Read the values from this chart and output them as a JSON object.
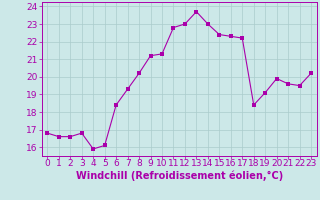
{
  "x": [
    0,
    1,
    2,
    3,
    4,
    5,
    6,
    7,
    8,
    9,
    10,
    11,
    12,
    13,
    14,
    15,
    16,
    17,
    18,
    19,
    20,
    21,
    22,
    23
  ],
  "y": [
    16.8,
    16.6,
    16.6,
    16.8,
    15.9,
    16.1,
    18.4,
    19.3,
    20.2,
    21.2,
    21.3,
    22.8,
    23.0,
    23.7,
    23.0,
    22.4,
    22.3,
    22.2,
    18.4,
    19.1,
    19.9,
    19.6,
    19.5,
    20.2
  ],
  "line_color": "#aa00aa",
  "marker_color": "#aa00aa",
  "bg_color": "#cce8e8",
  "grid_color": "#aacccc",
  "xlabel": "Windchill (Refroidissement éolien,°C)",
  "xlabel_color": "#aa00aa",
  "tick_color": "#aa00aa",
  "xlim": [
    -0.5,
    23.5
  ],
  "ylim": [
    15.5,
    24.25
  ],
  "yticks": [
    16,
    17,
    18,
    19,
    20,
    21,
    22,
    23,
    24
  ],
  "xticks": [
    0,
    1,
    2,
    3,
    4,
    5,
    6,
    7,
    8,
    9,
    10,
    11,
    12,
    13,
    14,
    15,
    16,
    17,
    18,
    19,
    20,
    21,
    22,
    23
  ],
  "tick_fontsize": 6.5,
  "xlabel_fontsize": 7,
  "linewidth": 0.8,
  "markersize": 2.2
}
